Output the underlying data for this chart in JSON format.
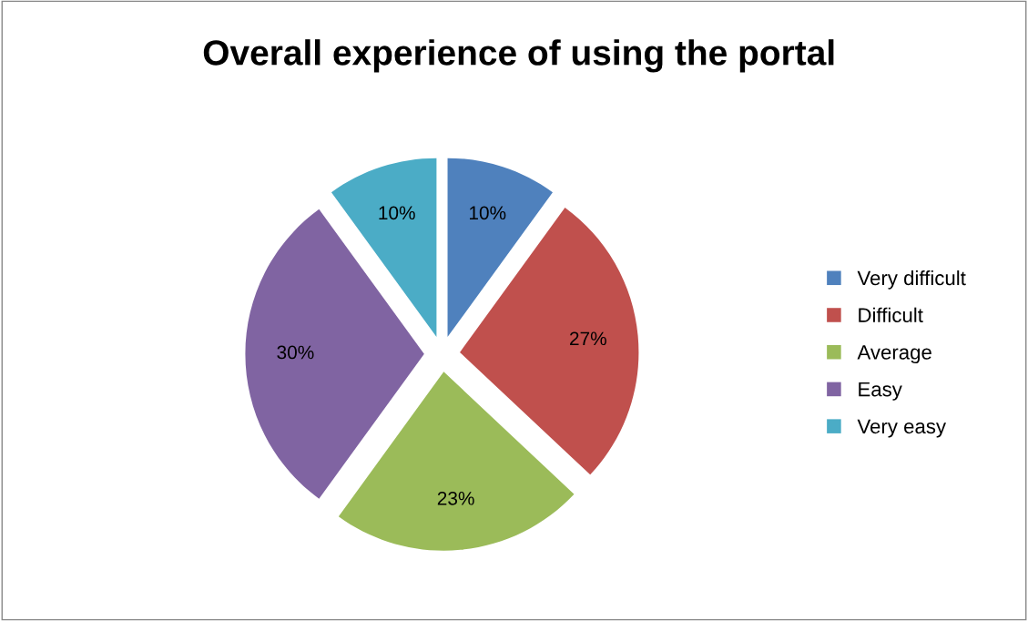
{
  "chart_data": {
    "type": "pie",
    "title": "Overall experience of using the portal",
    "categories": [
      "Very difficult",
      "Difficult",
      "Average",
      "Easy",
      "Very easy"
    ],
    "values": [
      10,
      27,
      23,
      30,
      10
    ],
    "value_labels": [
      "10%",
      "27%",
      "23%",
      "30%",
      "10%"
    ],
    "colors": [
      "#4f81bd",
      "#c0504d",
      "#9bbb59",
      "#8064a2",
      "#4bacc6"
    ],
    "legend": "right"
  }
}
